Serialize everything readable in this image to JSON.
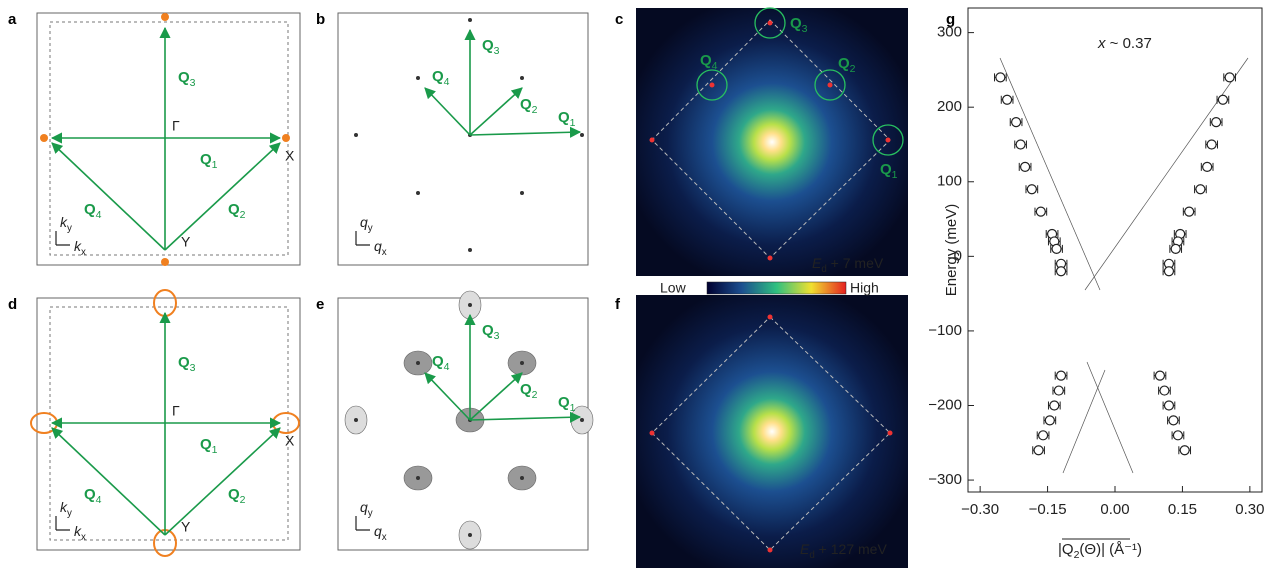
{
  "panel_a": {
    "letter": "a",
    "q": [
      {
        "main": "Q",
        "sub": "1"
      },
      {
        "main": "Q",
        "sub": "2"
      },
      {
        "main": "Q",
        "sub": "3"
      },
      {
        "main": "Q",
        "sub": "4"
      }
    ],
    "gamma": "Γ",
    "x_point": "X",
    "y_point": "Y",
    "ky": {
      "main": "k",
      "sub": "y"
    },
    "kx": {
      "main": "k",
      "sub": "x"
    }
  },
  "panel_b": {
    "letter": "b",
    "q": [
      {
        "main": "Q",
        "sub": "1"
      },
      {
        "main": "Q",
        "sub": "2"
      },
      {
        "main": "Q",
        "sub": "3"
      },
      {
        "main": "Q",
        "sub": "4"
      }
    ],
    "qy": {
      "main": "q",
      "sub": "y"
    },
    "qx": {
      "main": "q",
      "sub": "x"
    }
  },
  "panel_c": {
    "letter": "c",
    "q": [
      {
        "main": "Q",
        "sub": "1"
      },
      {
        "main": "Q",
        "sub": "2"
      },
      {
        "main": "Q",
        "sub": "3"
      },
      {
        "main": "Q",
        "sub": "4"
      }
    ],
    "energy": {
      "main": "E",
      "sub": "d",
      "rest": " + 7 meV"
    }
  },
  "colorbar": {
    "low": "Low",
    "high": "High"
  },
  "panel_d": {
    "letter": "d",
    "q": [
      {
        "main": "Q",
        "sub": "1"
      },
      {
        "main": "Q",
        "sub": "2"
      },
      {
        "main": "Q",
        "sub": "3"
      },
      {
        "main": "Q",
        "sub": "4"
      }
    ],
    "gamma": "Γ",
    "x_point": "X",
    "y_point": "Y",
    "ky": {
      "main": "k",
      "sub": "y"
    },
    "kx": {
      "main": "k",
      "sub": "x"
    }
  },
  "panel_e": {
    "letter": "e",
    "q": [
      {
        "main": "Q",
        "sub": "1"
      },
      {
        "main": "Q",
        "sub": "2"
      },
      {
        "main": "Q",
        "sub": "3"
      },
      {
        "main": "Q",
        "sub": "4"
      }
    ],
    "qy": {
      "main": "q",
      "sub": "y"
    },
    "qx": {
      "main": "q",
      "sub": "x"
    }
  },
  "panel_f": {
    "letter": "f",
    "energy": {
      "main": "E",
      "sub": "d",
      "rest": " + 127 meV"
    }
  },
  "chart_data": {
    "type": "scatter",
    "letter": "g",
    "annotation": {
      "main": "x",
      "rest": " ~ 0.37"
    },
    "xlabel": {
      "main": "|Q",
      "sub": "2",
      "rest": "(Θ)| (Å⁻¹)"
    },
    "ylabel": "Energy (meV)",
    "x": [
      -0.255,
      -0.24,
      -0.22,
      -0.21,
      -0.2,
      -0.185,
      -0.165,
      -0.14,
      -0.135,
      -0.13,
      -0.12,
      -0.12,
      0.255,
      0.24,
      0.225,
      0.215,
      0.205,
      0.19,
      0.165,
      0.145,
      0.14,
      0.135,
      0.12,
      0.12,
      -0.12,
      -0.125,
      -0.135,
      -0.145,
      -0.16,
      -0.17,
      0.1,
      0.11,
      0.12,
      0.13,
      0.14,
      0.155
    ],
    "values": [
      240,
      210,
      180,
      150,
      120,
      90,
      60,
      30,
      20,
      10,
      -10,
      -20,
      240,
      210,
      180,
      150,
      120,
      90,
      60,
      30,
      20,
      10,
      -10,
      -20,
      -160,
      -180,
      -200,
      -220,
      -240,
      -260,
      -160,
      -180,
      -200,
      -220,
      -240,
      -260
    ],
    "xerr": [
      0.013,
      0.013,
      0.013,
      0.013,
      0.013,
      0.013,
      0.013,
      0.013,
      0.013,
      0.013,
      0.013,
      0.013,
      0.013,
      0.013,
      0.013,
      0.013,
      0.013,
      0.013,
      0.013,
      0.013,
      0.013,
      0.013,
      0.013,
      0.013,
      0.013,
      0.013,
      0.013,
      0.013,
      0.013,
      0.013,
      0.013,
      0.013,
      0.013,
      0.013,
      0.013,
      0.013
    ],
    "xlim": [
      -0.327,
      0.327
    ],
    "ylim": [
      -316,
      333
    ],
    "xticks": [
      {
        "value": -0.3,
        "label": "−0.30"
      },
      {
        "value": -0.15,
        "label": "−0.15"
      },
      {
        "value": 0,
        "label": "0.00"
      },
      {
        "value": 0.15,
        "label": "0.15"
      },
      {
        "value": 0.3,
        "label": "0.30"
      }
    ],
    "yticks": [
      {
        "value": -300,
        "label": "−300"
      },
      {
        "value": -200,
        "label": "−200"
      },
      {
        "value": -100,
        "label": "−100"
      },
      0,
      100,
      200,
      300
    ]
  }
}
